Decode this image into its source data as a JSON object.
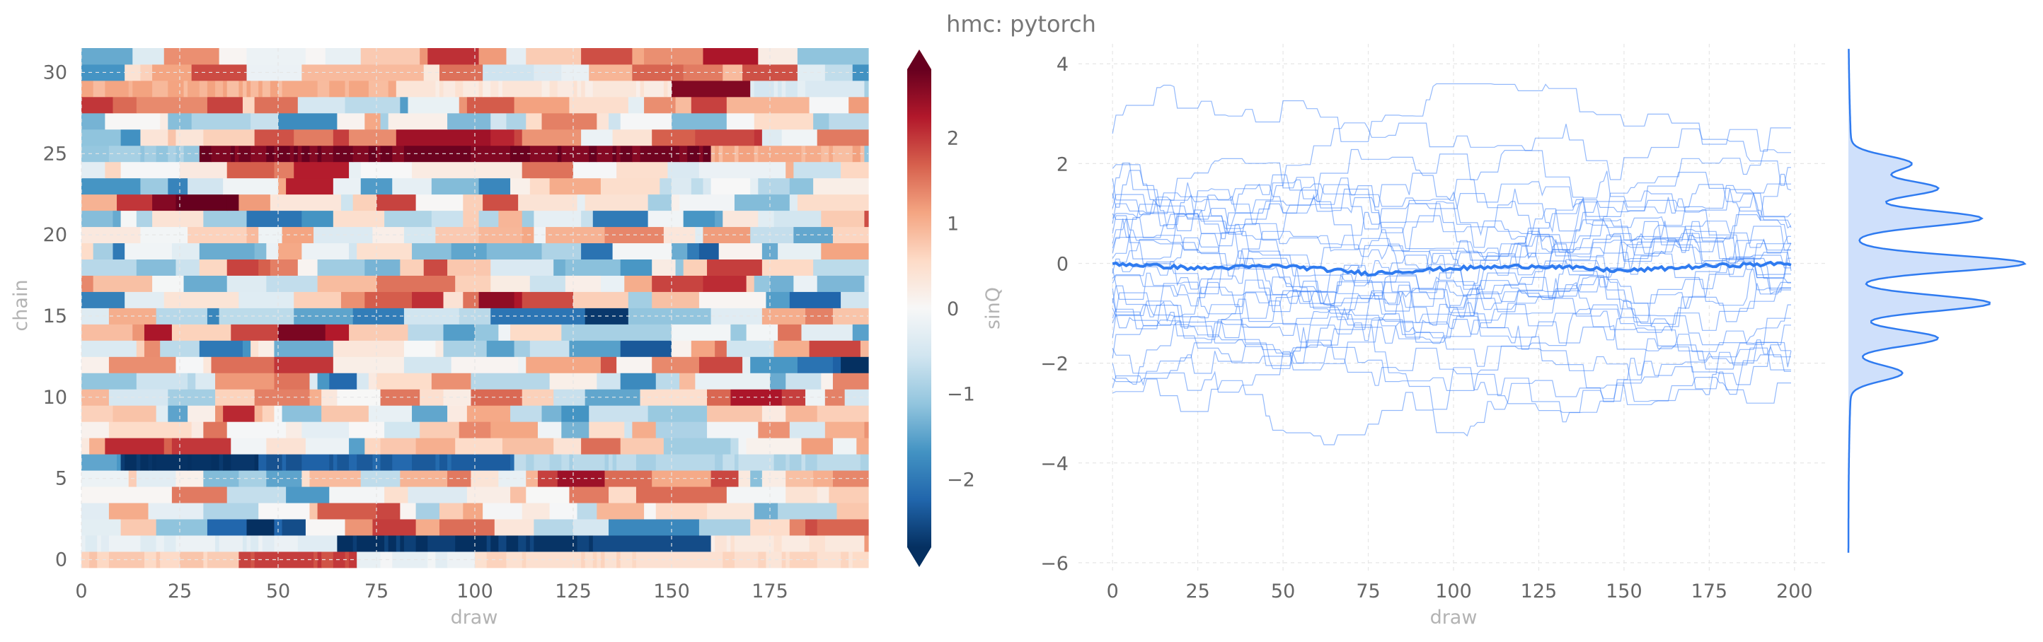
{
  "figure": {
    "suptitle": "hmc: pytorch"
  },
  "chart_data": [
    {
      "type": "heatmap",
      "title": "",
      "xlabel": "draw",
      "ylabel": "chain",
      "colorbar_label": "sinQ",
      "colormap": "RdBu_r",
      "n_chains": 32,
      "n_draws": 200,
      "xlim": [
        0,
        199
      ],
      "ylim": [
        0,
        31
      ],
      "vlim": [
        -2.8,
        2.8
      ],
      "x_ticks": [
        "0",
        "25",
        "50",
        "75",
        "100",
        "125",
        "150",
        "175"
      ],
      "y_ticks": [
        "0",
        "5",
        "10",
        "15",
        "20",
        "25",
        "30"
      ],
      "colorbar_ticks": [
        "−2",
        "−1",
        "0",
        "1",
        "2"
      ],
      "grid": true,
      "values_note_rows": [
        {
          "chain": 0,
          "segments": [
            [
              0,
              40,
              0.7
            ],
            [
              40,
              70,
              1.9
            ],
            [
              70,
              100,
              -0.2
            ],
            [
              100,
              199,
              0.5
            ]
          ]
        },
        {
          "chain": 1,
          "segments": [
            [
              0,
              65,
              -0.3
            ],
            [
              65,
              130,
              -2.7
            ],
            [
              130,
              160,
              -2.5
            ],
            [
              160,
              199,
              0.3
            ]
          ]
        },
        {
          "chain": 6,
          "segments": [
            [
              0,
              10,
              -1.5
            ],
            [
              10,
              45,
              -2.8
            ],
            [
              45,
              110,
              -2.3
            ],
            [
              110,
              199,
              -0.8
            ]
          ]
        },
        {
          "chain": 25,
          "segments": [
            [
              0,
              30,
              -1.0
            ],
            [
              30,
              160,
              2.7
            ],
            [
              160,
              199,
              1.0
            ]
          ]
        },
        {
          "chain": 29,
          "segments": [
            [
              0,
              80,
              1.0
            ],
            [
              80,
              160,
              0.3
            ],
            [
              150,
              170,
              2.6
            ],
            [
              170,
              199,
              -0.4
            ]
          ]
        }
      ]
    },
    {
      "type": "line",
      "title": "",
      "xlabel": "draw",
      "ylabel": "",
      "xlim": [
        -10,
        210
      ],
      "ylim": [
        -6.2,
        4.4
      ],
      "x_ticks": [
        "0",
        "25",
        "50",
        "75",
        "100",
        "125",
        "150",
        "175",
        "200"
      ],
      "y_ticks": [
        "−6",
        "−4",
        "−2",
        "0",
        "2",
        "4"
      ],
      "n_series": 32,
      "series_color": "#3a7ff7",
      "mean_line": {
        "values_at_x": [
          [
            0,
            0.0
          ],
          [
            25,
            -0.1
          ],
          [
            50,
            -0.05
          ],
          [
            75,
            -0.2
          ],
          [
            100,
            -0.1
          ],
          [
            125,
            -0.05
          ],
          [
            150,
            -0.15
          ],
          [
            175,
            -0.05
          ],
          [
            200,
            0.0
          ]
        ]
      },
      "marginal_density": {
        "orientation": "vertical",
        "fill_color": "#cfe0fb",
        "peaks": [
          {
            "y": 2.0,
            "height": 0.35
          },
          {
            "y": 1.5,
            "height": 0.5
          },
          {
            "y": 0.9,
            "height": 0.75
          },
          {
            "y": 0.0,
            "height": 1.0
          },
          {
            "y": -0.8,
            "height": 0.8
          },
          {
            "y": -1.5,
            "height": 0.5
          },
          {
            "y": -2.2,
            "height": 0.3
          }
        ],
        "range": [
          -5.8,
          4.3
        ]
      },
      "grid": true
    }
  ]
}
